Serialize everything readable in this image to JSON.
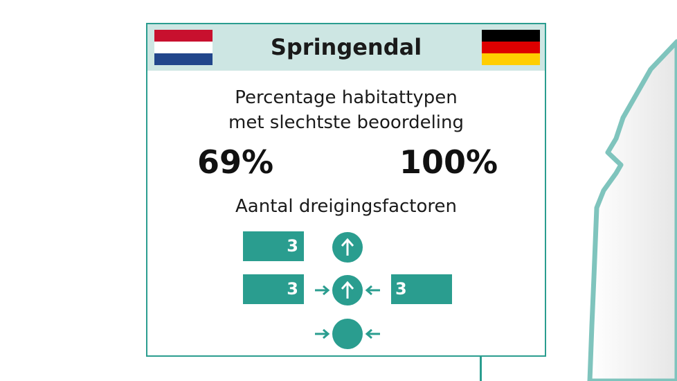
{
  "card": {
    "title": "Springendal",
    "flags": {
      "left": {
        "icon": "netherlands-flag-icon",
        "colors": [
          "#c8102e",
          "#ffffff",
          "#21468b"
        ]
      },
      "right": {
        "icon": "germany-flag-icon",
        "colors": [
          "#000000",
          "#dd0000",
          "#ffce00"
        ]
      }
    },
    "subtitle_line1": "Percentage habitattypen",
    "subtitle_line2": "met slechtste beoordeling",
    "percentage_nl": "69%",
    "percentage_de": "100%",
    "threats_title": "Aantal dreigingsfactoren",
    "threats": {
      "row1_left_count": "3",
      "row1_icon": "arrow-up-circle-icon",
      "row2_left_count": "3",
      "row2_icon": "arrows-in-arrow-up-circle-icon",
      "row2_right_count": "3",
      "row3_icon": "arrows-in-circle-icon"
    }
  },
  "colors": {
    "accent": "#2a9d8f",
    "header_bg": "#cde6e3"
  }
}
